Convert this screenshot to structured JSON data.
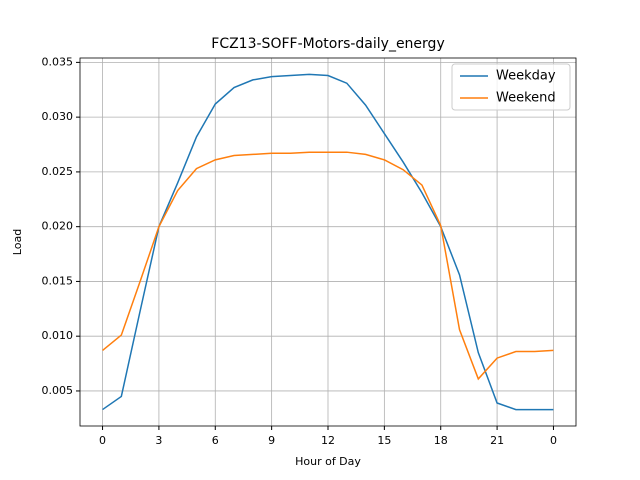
{
  "chart_data": {
    "type": "line",
    "title": "FCZ13-SOFF-Motors-daily_energy",
    "x_label": "Hour of Day",
    "y_label": "Load",
    "x": [
      0,
      1,
      2,
      3,
      4,
      5,
      6,
      7,
      8,
      9,
      10,
      11,
      12,
      13,
      14,
      15,
      16,
      17,
      18,
      19,
      20,
      21,
      22,
      23,
      24
    ],
    "series": [
      {
        "name": "Weekday",
        "color": "#1f77b4",
        "values": [
          0.0033,
          0.0045,
          0.0123,
          0.02,
          0.024,
          0.0282,
          0.0312,
          0.0327,
          0.0334,
          0.0337,
          0.0338,
          0.0339,
          0.0338,
          0.0331,
          0.0311,
          0.0285,
          0.0259,
          0.0231,
          0.02,
          0.0156,
          0.0085,
          0.0039,
          0.0033,
          0.0033,
          0.0033
        ]
      },
      {
        "name": "Weekend",
        "color": "#ff7f0e",
        "values": [
          0.0087,
          0.0101,
          0.015,
          0.02,
          0.0233,
          0.0253,
          0.0261,
          0.0265,
          0.0266,
          0.0267,
          0.0267,
          0.0268,
          0.0268,
          0.0268,
          0.0266,
          0.0261,
          0.0252,
          0.0238,
          0.0201,
          0.0106,
          0.0061,
          0.008,
          0.0086,
          0.0086,
          0.0087
        ]
      }
    ],
    "xlim": [
      -1.2,
      25.2
    ],
    "xticks": [
      0,
      3,
      6,
      9,
      12,
      15,
      18,
      21,
      {
        "value": 24,
        "label": "0"
      }
    ],
    "ylim": [
      0.0018,
      0.0354
    ],
    "yticks": [
      0.005,
      {
        "value": 0.01,
        "label": "0.010"
      },
      0.015,
      {
        "value": 0.02,
        "label": "0.020"
      },
      0.025,
      {
        "value": 0.03,
        "label": "0.030"
      },
      0.035
    ],
    "grid": true,
    "legend": "upper right"
  }
}
